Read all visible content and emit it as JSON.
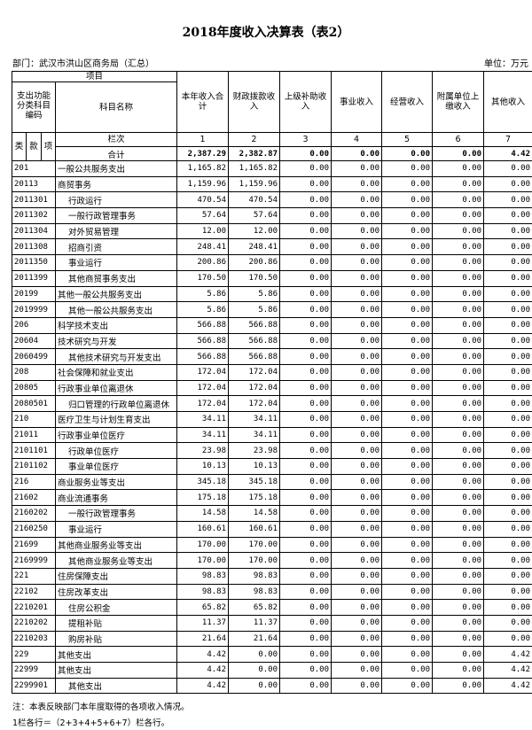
{
  "title": "2018年度收入决算表（表2）",
  "department": "部门：武汉市洪山区商务局（汇总）",
  "unit": "单位：万元",
  "header": {
    "project": "项目",
    "code_group": "支出功能分类科目编码",
    "name": "科目名称",
    "lei": "类",
    "kuan": "款",
    "xiang": "项",
    "columns": [
      "本年收入合计",
      "财政拨款收入",
      "上级补助收入",
      "事业收入",
      "经营收入",
      "附属单位上缴收入",
      "其他收入"
    ],
    "lanci_label": "栏次",
    "lanci": [
      "1",
      "2",
      "3",
      "4",
      "5",
      "6",
      "7"
    ]
  },
  "total": {
    "label": "合计",
    "values": [
      "2,387.29",
      "2,382.87",
      "0.00",
      "0.00",
      "0.00",
      "0.00",
      "4.42"
    ]
  },
  "rows": [
    {
      "code": "201",
      "name": "一般公共服务支出",
      "level": 1,
      "values": [
        "1,165.82",
        "1,165.82",
        "0.00",
        "0.00",
        "0.00",
        "0.00",
        "0.00"
      ]
    },
    {
      "code": "20113",
      "name": "商贸事务",
      "level": 2,
      "values": [
        "1,159.96",
        "1,159.96",
        "0.00",
        "0.00",
        "0.00",
        "0.00",
        "0.00"
      ]
    },
    {
      "code": "2011301",
      "name": "行政运行",
      "level": 3,
      "values": [
        "470.54",
        "470.54",
        "0.00",
        "0.00",
        "0.00",
        "0.00",
        "0.00"
      ]
    },
    {
      "code": "2011302",
      "name": "一般行政管理事务",
      "level": 3,
      "values": [
        "57.64",
        "57.64",
        "0.00",
        "0.00",
        "0.00",
        "0.00",
        "0.00"
      ]
    },
    {
      "code": "2011304",
      "name": "对外贸易管理",
      "level": 3,
      "values": [
        "12.00",
        "12.00",
        "0.00",
        "0.00",
        "0.00",
        "0.00",
        "0.00"
      ]
    },
    {
      "code": "2011308",
      "name": "招商引资",
      "level": 3,
      "values": [
        "248.41",
        "248.41",
        "0.00",
        "0.00",
        "0.00",
        "0.00",
        "0.00"
      ]
    },
    {
      "code": "2011350",
      "name": "事业运行",
      "level": 3,
      "values": [
        "200.86",
        "200.86",
        "0.00",
        "0.00",
        "0.00",
        "0.00",
        "0.00"
      ]
    },
    {
      "code": "2011399",
      "name": "其他商贸事务支出",
      "level": 3,
      "values": [
        "170.50",
        "170.50",
        "0.00",
        "0.00",
        "0.00",
        "0.00",
        "0.00"
      ]
    },
    {
      "code": "20199",
      "name": "其他一般公共服务支出",
      "level": 2,
      "values": [
        "5.86",
        "5.86",
        "0.00",
        "0.00",
        "0.00",
        "0.00",
        "0.00"
      ]
    },
    {
      "code": "2019999",
      "name": "其他一般公共服务支出",
      "level": 3,
      "values": [
        "5.86",
        "5.86",
        "0.00",
        "0.00",
        "0.00",
        "0.00",
        "0.00"
      ]
    },
    {
      "code": "206",
      "name": "科学技术支出",
      "level": 1,
      "values": [
        "566.88",
        "566.88",
        "0.00",
        "0.00",
        "0.00",
        "0.00",
        "0.00"
      ]
    },
    {
      "code": "20604",
      "name": "技术研究与开发",
      "level": 2,
      "values": [
        "566.88",
        "566.88",
        "0.00",
        "0.00",
        "0.00",
        "0.00",
        "0.00"
      ]
    },
    {
      "code": "2060499",
      "name": "其他技术研究与开发支出",
      "level": 3,
      "values": [
        "566.88",
        "566.88",
        "0.00",
        "0.00",
        "0.00",
        "0.00",
        "0.00"
      ]
    },
    {
      "code": "208",
      "name": "社会保障和就业支出",
      "level": 1,
      "values": [
        "172.04",
        "172.04",
        "0.00",
        "0.00",
        "0.00",
        "0.00",
        "0.00"
      ]
    },
    {
      "code": "20805",
      "name": "行政事业单位离退休",
      "level": 2,
      "values": [
        "172.04",
        "172.04",
        "0.00",
        "0.00",
        "0.00",
        "0.00",
        "0.00"
      ]
    },
    {
      "code": "2080501",
      "name": "归口管理的行政单位离退休",
      "level": 3,
      "values": [
        "172.04",
        "172.04",
        "0.00",
        "0.00",
        "0.00",
        "0.00",
        "0.00"
      ]
    },
    {
      "code": "210",
      "name": "医疗卫生与计划生育支出",
      "level": 1,
      "values": [
        "34.11",
        "34.11",
        "0.00",
        "0.00",
        "0.00",
        "0.00",
        "0.00"
      ]
    },
    {
      "code": "21011",
      "name": "行政事业单位医疗",
      "level": 2,
      "values": [
        "34.11",
        "34.11",
        "0.00",
        "0.00",
        "0.00",
        "0.00",
        "0.00"
      ]
    },
    {
      "code": "2101101",
      "name": "行政单位医疗",
      "level": 3,
      "values": [
        "23.98",
        "23.98",
        "0.00",
        "0.00",
        "0.00",
        "0.00",
        "0.00"
      ]
    },
    {
      "code": "2101102",
      "name": "事业单位医疗",
      "level": 3,
      "values": [
        "10.13",
        "10.13",
        "0.00",
        "0.00",
        "0.00",
        "0.00",
        "0.00"
      ]
    },
    {
      "code": "216",
      "name": "商业服务业等支出",
      "level": 1,
      "values": [
        "345.18",
        "345.18",
        "0.00",
        "0.00",
        "0.00",
        "0.00",
        "0.00"
      ]
    },
    {
      "code": "21602",
      "name": "商业流通事务",
      "level": 2,
      "values": [
        "175.18",
        "175.18",
        "0.00",
        "0.00",
        "0.00",
        "0.00",
        "0.00"
      ]
    },
    {
      "code": "2160202",
      "name": "一般行政管理事务",
      "level": 3,
      "values": [
        "14.58",
        "14.58",
        "0.00",
        "0.00",
        "0.00",
        "0.00",
        "0.00"
      ]
    },
    {
      "code": "2160250",
      "name": "事业运行",
      "level": 3,
      "values": [
        "160.61",
        "160.61",
        "0.00",
        "0.00",
        "0.00",
        "0.00",
        "0.00"
      ]
    },
    {
      "code": "21699",
      "name": "其他商业服务业等支出",
      "level": 2,
      "values": [
        "170.00",
        "170.00",
        "0.00",
        "0.00",
        "0.00",
        "0.00",
        "0.00"
      ]
    },
    {
      "code": "2169999",
      "name": "其他商业服务业等支出",
      "level": 3,
      "values": [
        "170.00",
        "170.00",
        "0.00",
        "0.00",
        "0.00",
        "0.00",
        "0.00"
      ]
    },
    {
      "code": "221",
      "name": "住房保障支出",
      "level": 1,
      "values": [
        "98.83",
        "98.83",
        "0.00",
        "0.00",
        "0.00",
        "0.00",
        "0.00"
      ]
    },
    {
      "code": "22102",
      "name": "住房改革支出",
      "level": 2,
      "values": [
        "98.83",
        "98.83",
        "0.00",
        "0.00",
        "0.00",
        "0.00",
        "0.00"
      ]
    },
    {
      "code": "2210201",
      "name": "住房公积金",
      "level": 3,
      "values": [
        "65.82",
        "65.82",
        "0.00",
        "0.00",
        "0.00",
        "0.00",
        "0.00"
      ]
    },
    {
      "code": "2210202",
      "name": "提租补贴",
      "level": 3,
      "values": [
        "11.37",
        "11.37",
        "0.00",
        "0.00",
        "0.00",
        "0.00",
        "0.00"
      ]
    },
    {
      "code": "2210203",
      "name": "购房补贴",
      "level": 3,
      "values": [
        "21.64",
        "21.64",
        "0.00",
        "0.00",
        "0.00",
        "0.00",
        "0.00"
      ]
    },
    {
      "code": "229",
      "name": "其他支出",
      "level": 1,
      "values": [
        "4.42",
        "0.00",
        "0.00",
        "0.00",
        "0.00",
        "0.00",
        "4.42"
      ]
    },
    {
      "code": "22999",
      "name": "其他支出",
      "level": 2,
      "values": [
        "4.42",
        "0.00",
        "0.00",
        "0.00",
        "0.00",
        "0.00",
        "4.42"
      ]
    },
    {
      "code": "2299901",
      "name": "其他支出",
      "level": 3,
      "values": [
        "4.42",
        "0.00",
        "0.00",
        "0.00",
        "0.00",
        "0.00",
        "4.42"
      ]
    }
  ],
  "notes": [
    "注：本表反映部门本年度取得的各项收入情况。",
    "1栏各行＝（2+3+4+5+6+7）栏各行。"
  ]
}
